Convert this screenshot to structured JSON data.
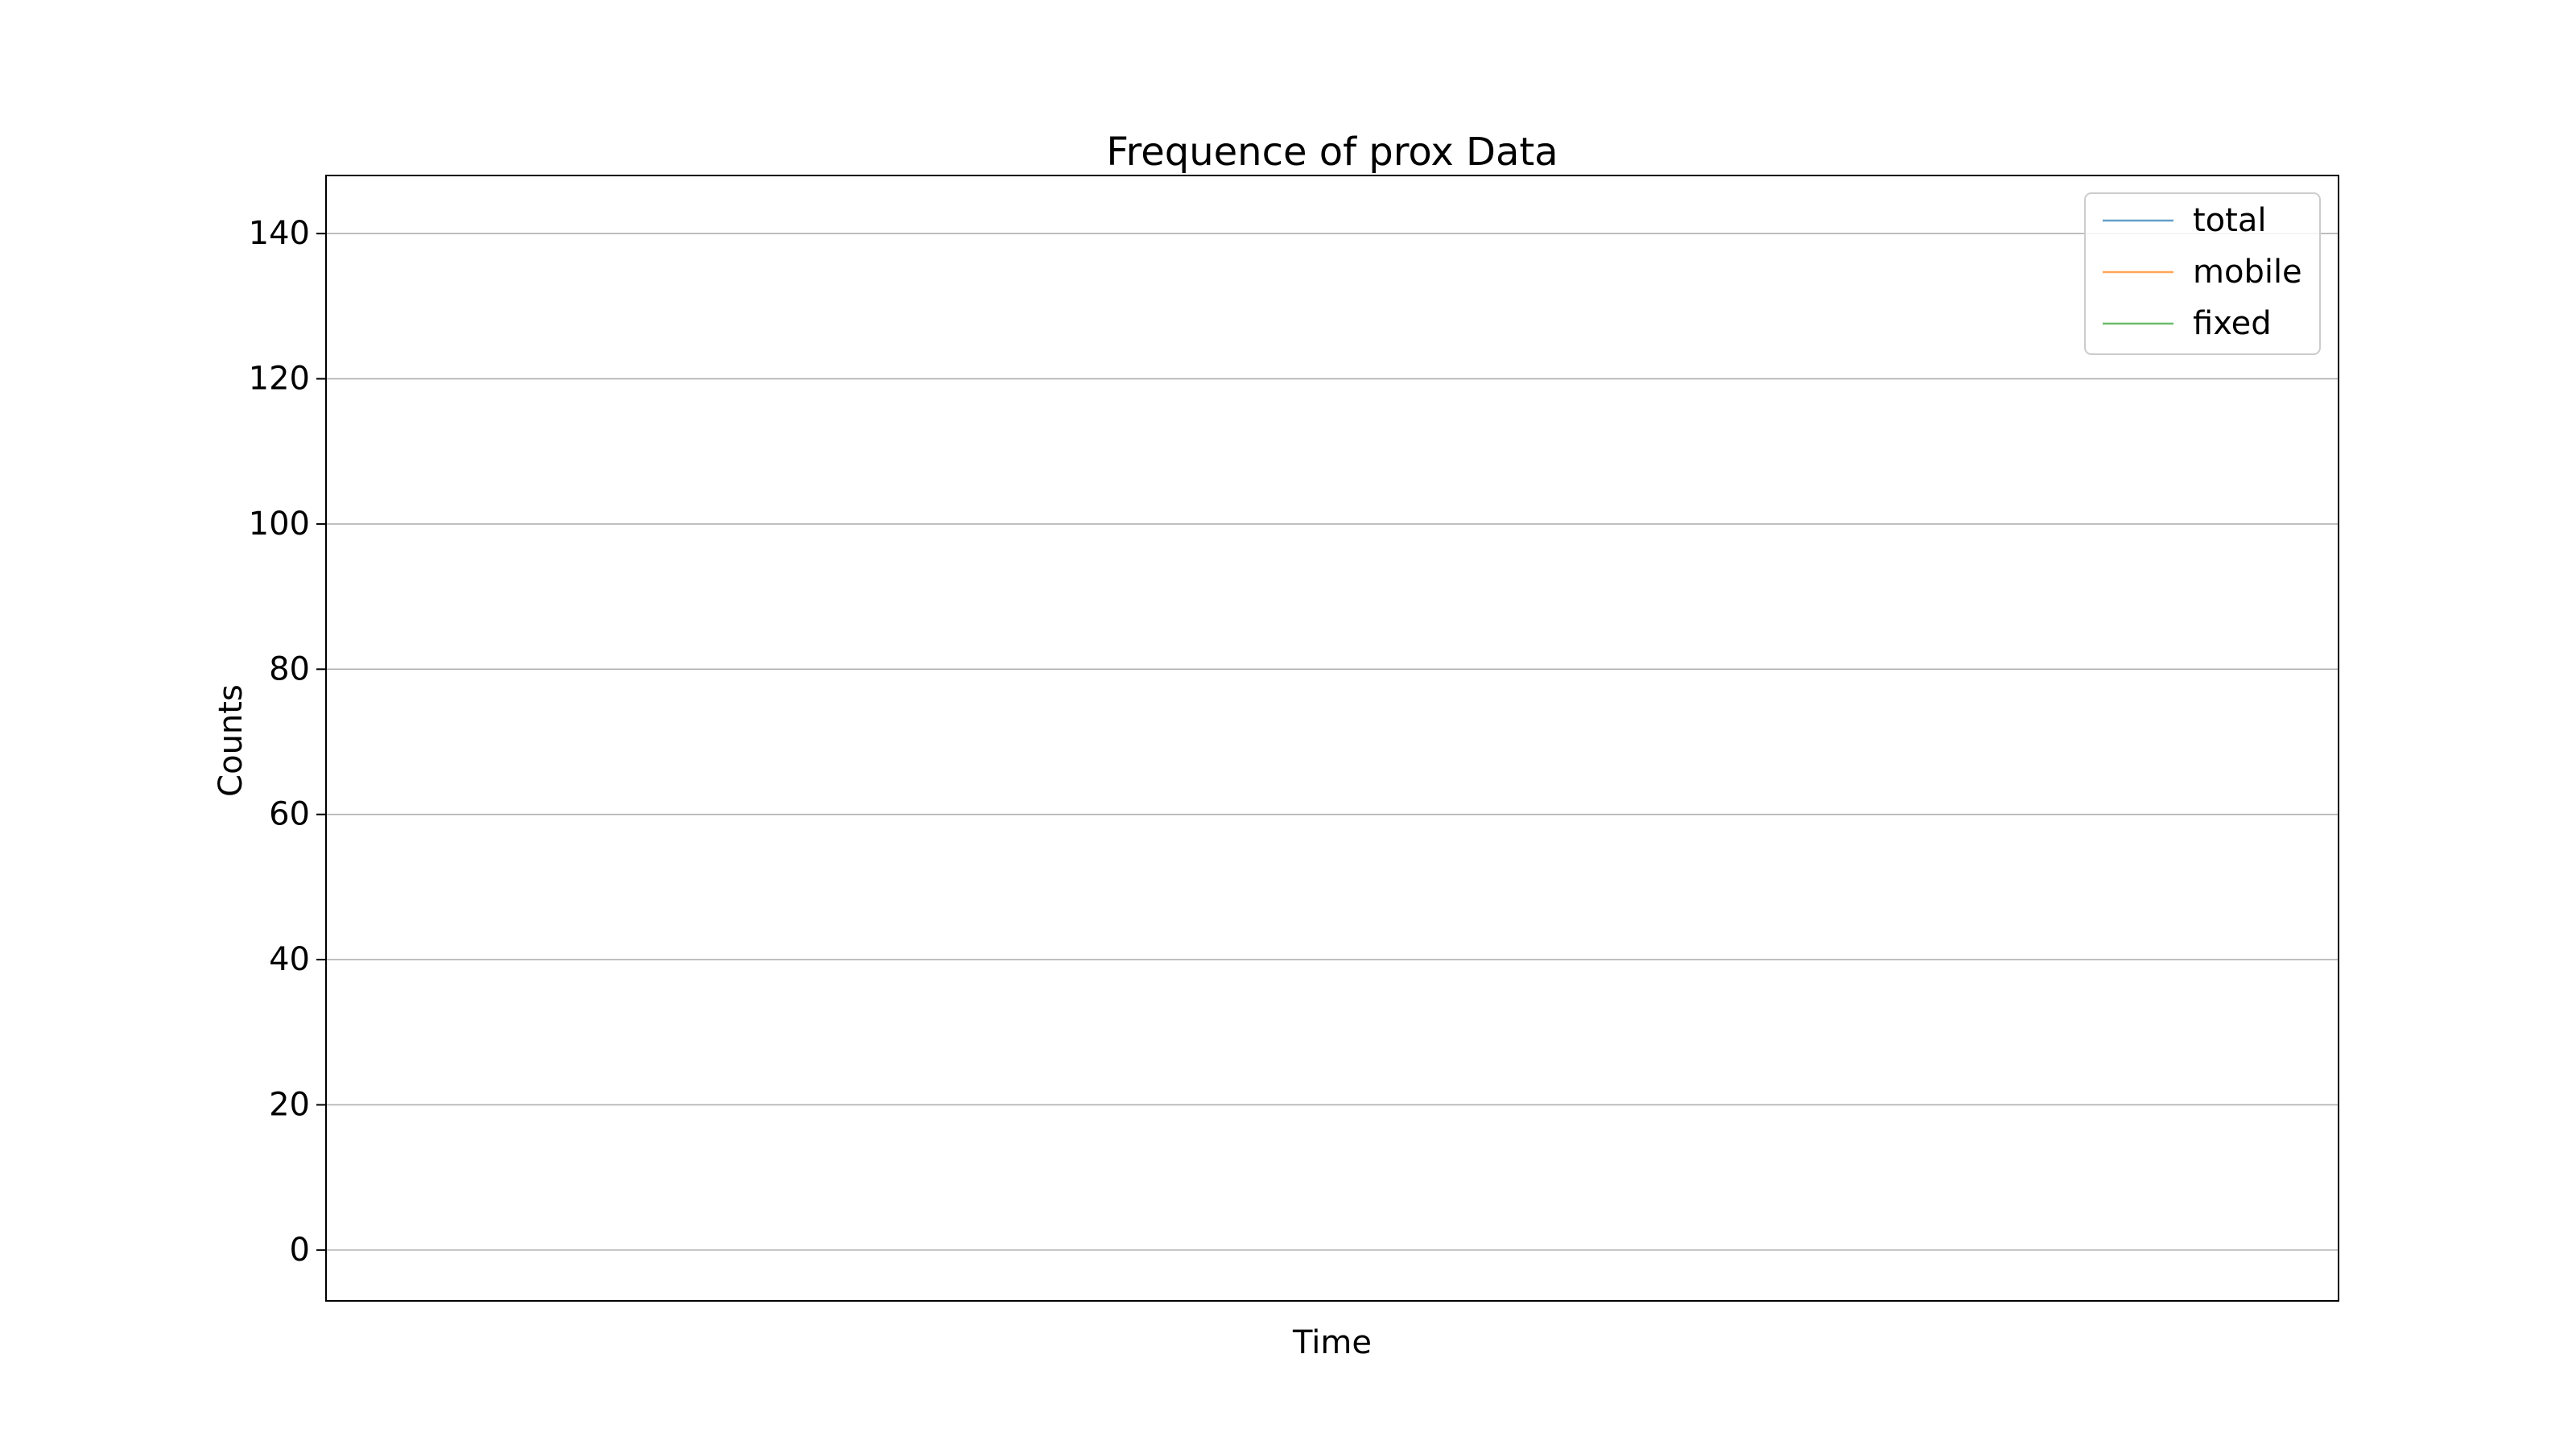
{
  "chart_data": {
    "type": "line",
    "title": "Frequence of prox Data",
    "xlabel": "Time",
    "ylabel": "Counts",
    "ylim": [
      -7,
      148
    ],
    "yticks": [
      0,
      20,
      40,
      60,
      80,
      100,
      120,
      140
    ],
    "xticks": [],
    "grid": "horizontal",
    "legend_position": "top-right",
    "colors": {
      "total": "#1f77b4",
      "mobile": "#ff7f0e",
      "fixed": "#2ca02c"
    },
    "series": [
      {
        "name": "total",
        "values": []
      },
      {
        "name": "mobile",
        "values": []
      },
      {
        "name": "fixed",
        "values": []
      }
    ]
  }
}
